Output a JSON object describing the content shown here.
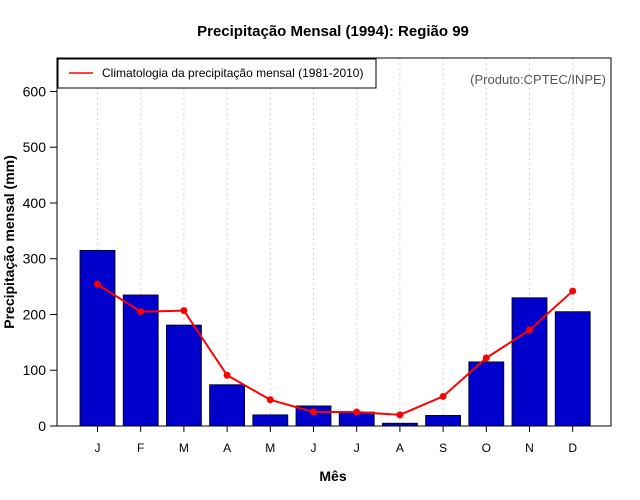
{
  "chart_data": {
    "type": "bar",
    "title": "Precipitação Mensal (1994): Região 99",
    "xlabel": "Mês",
    "ylabel": "Precipitação mensal (mm)",
    "credit": "(Produto:CPTEC/INPE)",
    "ylim": [
      0,
      660
    ],
    "yticks": [
      0,
      100,
      200,
      300,
      400,
      500,
      600
    ],
    "categories": [
      "J",
      "F",
      "M",
      "A",
      "M",
      "J",
      "J",
      "A",
      "S",
      "O",
      "N",
      "D"
    ],
    "series": [
      {
        "name": "Precipitação mensal (1994)",
        "type": "bar",
        "color": "#0000CD",
        "values": [
          315,
          235,
          181,
          74,
          20,
          36,
          25,
          5,
          19,
          115,
          230,
          205
        ]
      },
      {
        "name": "Climatologia da precipitação mensal (1981-2010)",
        "type": "line",
        "color": "#FF0000",
        "values": [
          254,
          205,
          207,
          91,
          47,
          25,
          25,
          20,
          53,
          122,
          172,
          242
        ]
      }
    ],
    "legend": {
      "position": "top-left",
      "entries": [
        "Climatologia da precipitação mensal (1981-2010)"
      ]
    },
    "grid": {
      "vertical": true,
      "horizontal": false
    }
  }
}
